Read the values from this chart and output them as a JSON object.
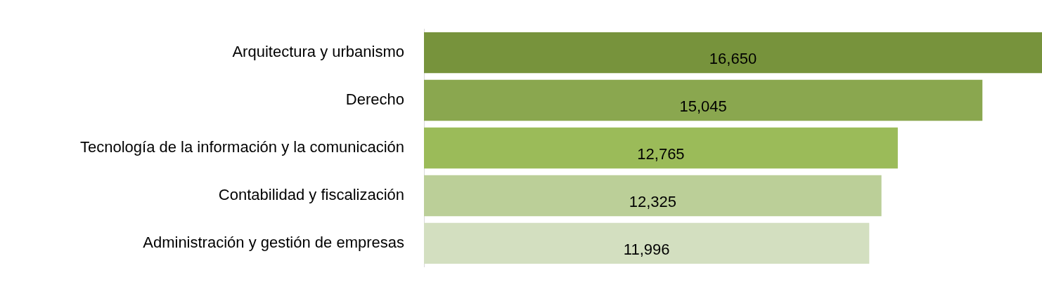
{
  "chart_data": {
    "type": "bar",
    "orientation": "horizontal",
    "categories": [
      "Arquitectura y urbanismo",
      "Derecho",
      "Tecnología de la información y la comunicación",
      "Contabilidad y fiscalización",
      "Administración y gestión de empresas"
    ],
    "values": [
      16650,
      15045,
      12765,
      12325,
      11996
    ],
    "colors": [
      "#77933c",
      "#8aa74f",
      "#9bbb59",
      "#bbcf98",
      "#d3dfc0"
    ],
    "value_labels": [
      "16,650",
      "15,045",
      "12,765",
      "12,325",
      "11,996"
    ]
  }
}
